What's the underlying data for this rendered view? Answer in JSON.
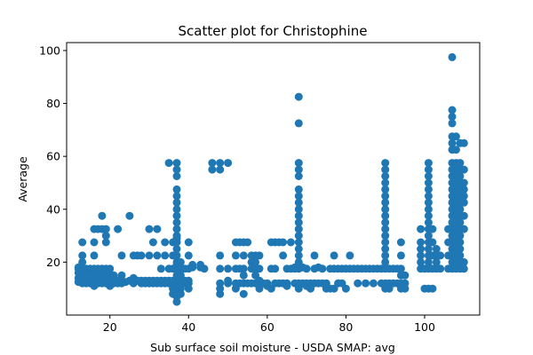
{
  "chart_data": {
    "type": "scatter",
    "title": "Scatter plot for Christophine",
    "xlabel": "Sub surface soil moisture - USDA SMAP: avg",
    "ylabel": "Average",
    "xlim": [
      9,
      114
    ],
    "ylim": [
      0,
      103
    ],
    "xticks": [
      20,
      40,
      60,
      80,
      100
    ],
    "yticks": [
      20,
      40,
      60,
      80,
      100
    ],
    "grid": false,
    "marker_color": "#1f77b4",
    "points": [
      [
        12,
        12.5
      ],
      [
        12,
        14
      ],
      [
        12,
        16
      ],
      [
        12,
        17.5
      ],
      [
        12,
        18
      ],
      [
        13,
        12
      ],
      [
        13,
        15
      ],
      [
        13,
        17.5
      ],
      [
        13,
        20
      ],
      [
        13,
        22.5
      ],
      [
        13,
        27.5
      ],
      [
        14,
        12
      ],
      [
        14,
        13
      ],
      [
        14,
        15
      ],
      [
        14,
        17.5
      ],
      [
        15,
        12
      ],
      [
        15,
        13
      ],
      [
        15,
        16
      ],
      [
        15,
        17.5
      ],
      [
        16,
        11
      ],
      [
        16,
        13
      ],
      [
        16,
        15
      ],
      [
        16,
        17.5
      ],
      [
        16,
        22.5
      ],
      [
        16,
        27.5
      ],
      [
        16,
        32.5
      ],
      [
        17,
        12
      ],
      [
        17,
        13
      ],
      [
        17,
        15
      ],
      [
        17,
        17.5
      ],
      [
        17,
        32.5
      ],
      [
        18,
        12
      ],
      [
        18,
        15
      ],
      [
        18,
        17.5
      ],
      [
        18,
        32.5
      ],
      [
        18,
        37.5
      ],
      [
        19,
        12
      ],
      [
        19,
        13
      ],
      [
        19,
        15
      ],
      [
        19,
        17.5
      ],
      [
        19,
        27.5
      ],
      [
        19,
        30
      ],
      [
        19,
        32.5
      ],
      [
        20,
        11
      ],
      [
        20,
        13
      ],
      [
        20,
        15
      ],
      [
        20,
        17.5
      ],
      [
        21,
        12
      ],
      [
        21,
        13
      ],
      [
        21,
        15
      ],
      [
        22,
        12
      ],
      [
        22,
        13
      ],
      [
        22,
        32.5
      ],
      [
        23,
        12
      ],
      [
        23,
        13
      ],
      [
        23,
        15
      ],
      [
        23,
        22.5
      ],
      [
        24,
        12.5
      ],
      [
        25,
        13
      ],
      [
        25,
        37.5
      ],
      [
        26,
        12
      ],
      [
        26,
        14
      ],
      [
        26,
        22.5
      ],
      [
        27,
        13
      ],
      [
        27,
        22.5
      ],
      [
        28,
        12
      ],
      [
        28,
        13
      ],
      [
        28,
        22.5
      ],
      [
        29,
        12
      ],
      [
        29,
        13
      ],
      [
        30,
        12
      ],
      [
        30,
        13
      ],
      [
        30,
        22.5
      ],
      [
        30,
        32.5
      ],
      [
        31,
        12
      ],
      [
        31,
        13
      ],
      [
        31,
        27.5
      ],
      [
        32,
        12
      ],
      [
        32,
        13
      ],
      [
        32,
        22.5
      ],
      [
        32,
        32.5
      ],
      [
        33,
        12
      ],
      [
        33,
        13
      ],
      [
        33,
        17.5
      ],
      [
        34,
        12
      ],
      [
        34,
        13
      ],
      [
        34,
        22.5
      ],
      [
        34,
        27.5
      ],
      [
        35,
        12
      ],
      [
        35,
        13
      ],
      [
        35,
        17.5
      ],
      [
        35,
        57.5
      ],
      [
        36,
        8
      ],
      [
        36,
        10
      ],
      [
        36,
        12
      ],
      [
        36,
        13
      ],
      [
        36,
        17.5
      ],
      [
        36,
        22.5
      ],
      [
        36,
        27.5
      ],
      [
        37,
        5
      ],
      [
        37,
        7
      ],
      [
        37,
        8
      ],
      [
        37,
        10
      ],
      [
        37,
        12
      ],
      [
        37,
        13
      ],
      [
        37,
        15
      ],
      [
        37,
        17.5
      ],
      [
        37,
        19
      ],
      [
        37,
        20
      ],
      [
        37,
        22.5
      ],
      [
        37,
        25
      ],
      [
        37,
        27.5
      ],
      [
        37,
        29
      ],
      [
        37,
        30
      ],
      [
        37,
        32.5
      ],
      [
        37,
        35
      ],
      [
        37,
        37.5
      ],
      [
        37,
        40
      ],
      [
        37,
        42.5
      ],
      [
        37,
        45
      ],
      [
        37,
        47.5
      ],
      [
        37,
        52.5
      ],
      [
        37,
        55
      ],
      [
        37,
        57.5
      ],
      [
        38,
        8
      ],
      [
        38,
        10
      ],
      [
        38,
        11
      ],
      [
        38,
        13
      ],
      [
        38,
        15
      ],
      [
        38,
        17.5
      ],
      [
        38,
        20
      ],
      [
        39,
        12
      ],
      [
        39,
        13
      ],
      [
        39,
        17.5
      ],
      [
        40,
        10
      ],
      [
        40,
        12
      ],
      [
        40,
        13
      ],
      [
        40,
        17.5
      ],
      [
        40,
        22.5
      ],
      [
        40,
        27.5
      ],
      [
        41,
        18
      ],
      [
        41,
        19
      ],
      [
        43,
        18
      ],
      [
        43,
        19
      ],
      [
        44,
        17.5
      ],
      [
        46,
        55
      ],
      [
        46,
        57.5
      ],
      [
        48,
        8
      ],
      [
        48,
        10
      ],
      [
        48,
        12
      ],
      [
        48,
        17.5
      ],
      [
        48,
        22.5
      ],
      [
        48,
        55
      ],
      [
        48,
        57.5
      ],
      [
        50,
        12
      ],
      [
        50,
        13
      ],
      [
        50,
        17.5
      ],
      [
        50,
        57.5
      ],
      [
        52,
        10
      ],
      [
        52,
        12
      ],
      [
        52,
        17.5
      ],
      [
        52,
        22.5
      ],
      [
        52,
        27.5
      ],
      [
        53,
        12
      ],
      [
        53,
        17.5
      ],
      [
        53,
        27.5
      ],
      [
        54,
        8
      ],
      [
        54,
        12
      ],
      [
        54,
        15
      ],
      [
        54,
        17.5
      ],
      [
        54,
        22.5
      ],
      [
        54,
        27.5
      ],
      [
        55,
        12
      ],
      [
        55,
        27.5
      ],
      [
        56,
        12
      ],
      [
        56,
        17.5
      ],
      [
        56,
        20
      ],
      [
        56,
        22.5
      ],
      [
        57,
        12
      ],
      [
        57,
        15
      ],
      [
        57,
        17.5
      ],
      [
        57,
        20
      ],
      [
        57,
        22.5
      ],
      [
        58,
        10
      ],
      [
        58,
        12
      ],
      [
        58,
        13
      ],
      [
        58,
        17.5
      ],
      [
        58,
        22.5
      ],
      [
        59,
        12
      ],
      [
        60,
        11
      ],
      [
        60,
        12
      ],
      [
        61,
        10
      ],
      [
        61,
        17.5
      ],
      [
        61,
        27.5
      ],
      [
        62,
        12
      ],
      [
        62,
        17.5
      ],
      [
        62,
        27.5
      ],
      [
        63,
        12
      ],
      [
        63,
        27.5
      ],
      [
        64,
        12
      ],
      [
        64,
        22.5
      ],
      [
        64,
        27.5
      ],
      [
        65,
        11
      ],
      [
        65,
        12
      ],
      [
        65,
        17.5
      ],
      [
        66,
        17.5
      ],
      [
        66,
        27.5
      ],
      [
        67,
        12
      ],
      [
        67,
        17.5
      ],
      [
        67,
        18
      ],
      [
        68,
        10
      ],
      [
        68,
        12
      ],
      [
        68,
        17.5
      ],
      [
        68,
        18
      ],
      [
        68,
        20
      ],
      [
        68,
        22.5
      ],
      [
        68,
        25
      ],
      [
        68,
        27.5
      ],
      [
        68,
        30
      ],
      [
        68,
        32.5
      ],
      [
        68,
        35
      ],
      [
        68,
        37.5
      ],
      [
        68,
        40
      ],
      [
        68,
        42.5
      ],
      [
        68,
        45
      ],
      [
        68,
        47.5
      ],
      [
        68,
        52.5
      ],
      [
        68,
        55
      ],
      [
        68,
        57.5
      ],
      [
        68,
        72.5
      ],
      [
        68,
        82.5
      ],
      [
        69,
        12
      ],
      [
        69,
        18
      ],
      [
        70,
        11
      ],
      [
        70,
        12
      ],
      [
        70,
        17.5
      ],
      [
        71,
        10
      ],
      [
        71,
        12
      ],
      [
        72,
        12
      ],
      [
        72,
        17.5
      ],
      [
        72,
        22.5
      ],
      [
        73,
        12
      ],
      [
        73,
        18
      ],
      [
        74,
        12
      ],
      [
        74,
        17.5
      ],
      [
        75,
        10
      ],
      [
        75,
        12
      ],
      [
        76,
        10
      ],
      [
        76,
        17.5
      ],
      [
        77,
        10
      ],
      [
        77,
        17.5
      ],
      [
        77,
        22.5
      ],
      [
        78,
        12
      ],
      [
        78,
        17.5
      ],
      [
        79,
        12
      ],
      [
        79,
        17.5
      ],
      [
        80,
        10
      ],
      [
        80,
        17.5
      ],
      [
        81,
        17.5
      ],
      [
        81,
        22.5
      ],
      [
        82,
        17.5
      ],
      [
        83,
        12
      ],
      [
        83,
        17.5
      ],
      [
        84,
        17.5
      ],
      [
        85,
        12
      ],
      [
        85,
        17.5
      ],
      [
        86,
        17.5
      ],
      [
        87,
        12
      ],
      [
        87,
        17.5
      ],
      [
        88,
        17.5
      ],
      [
        89,
        12
      ],
      [
        89,
        17.5
      ],
      [
        90,
        10
      ],
      [
        90,
        12
      ],
      [
        90,
        17.5
      ],
      [
        90,
        20
      ],
      [
        90,
        22.5
      ],
      [
        90,
        25
      ],
      [
        90,
        27.5
      ],
      [
        90,
        30
      ],
      [
        90,
        32.5
      ],
      [
        90,
        35
      ],
      [
        90,
        37.5
      ],
      [
        90,
        40
      ],
      [
        90,
        42.5
      ],
      [
        90,
        45
      ],
      [
        90,
        47.5
      ],
      [
        90,
        50
      ],
      [
        90,
        52.5
      ],
      [
        90,
        55
      ],
      [
        90,
        57.5
      ],
      [
        91,
        10
      ],
      [
        91,
        12
      ],
      [
        91,
        17.5
      ],
      [
        92,
        12
      ],
      [
        92,
        17.5
      ],
      [
        93,
        12
      ],
      [
        93,
        17.5
      ],
      [
        94,
        10
      ],
      [
        94,
        12
      ],
      [
        94,
        15
      ],
      [
        94,
        17.5
      ],
      [
        94,
        22.5
      ],
      [
        94,
        27.5
      ],
      [
        95,
        10
      ],
      [
        95,
        12
      ],
      [
        95,
        15
      ],
      [
        99,
        17.5
      ],
      [
        99,
        20
      ],
      [
        99,
        22.5
      ],
      [
        99,
        25
      ],
      [
        99,
        27.5
      ],
      [
        99,
        32.5
      ],
      [
        100,
        10
      ],
      [
        100,
        17.5
      ],
      [
        101,
        10
      ],
      [
        101,
        17.5
      ],
      [
        101,
        20
      ],
      [
        101,
        22.5
      ],
      [
        101,
        25
      ],
      [
        101,
        27.5
      ],
      [
        101,
        30
      ],
      [
        101,
        32.5
      ],
      [
        101,
        35
      ],
      [
        101,
        37.5
      ],
      [
        101,
        40
      ],
      [
        101,
        42.5
      ],
      [
        101,
        45
      ],
      [
        101,
        47.5
      ],
      [
        101,
        50
      ],
      [
        101,
        52.5
      ],
      [
        101,
        55
      ],
      [
        101,
        57.5
      ],
      [
        102,
        10
      ],
      [
        102,
        17.5
      ],
      [
        102,
        22.5
      ],
      [
        102,
        27.5
      ],
      [
        102,
        32.5
      ],
      [
        103,
        17.5
      ],
      [
        103,
        20
      ],
      [
        103,
        22.5
      ],
      [
        103,
        25
      ],
      [
        104,
        17.5
      ],
      [
        104,
        22.5
      ],
      [
        106,
        17.5
      ],
      [
        106,
        22.5
      ],
      [
        106,
        27.5
      ],
      [
        106,
        32.5
      ],
      [
        107,
        17.5
      ],
      [
        107,
        20
      ],
      [
        107,
        22.5
      ],
      [
        107,
        25
      ],
      [
        107,
        27.5
      ],
      [
        107,
        30
      ],
      [
        107,
        32.5
      ],
      [
        107,
        35
      ],
      [
        107,
        37.5
      ],
      [
        107,
        40
      ],
      [
        107,
        42.5
      ],
      [
        107,
        45
      ],
      [
        107,
        47.5
      ],
      [
        107,
        50
      ],
      [
        107,
        52.5
      ],
      [
        107,
        55
      ],
      [
        107,
        57.5
      ],
      [
        107,
        62.5
      ],
      [
        107,
        65
      ],
      [
        107,
        67.5
      ],
      [
        107,
        72.5
      ],
      [
        107,
        75
      ],
      [
        107,
        77.5
      ],
      [
        107,
        97.5
      ],
      [
        108,
        17.5
      ],
      [
        108,
        20
      ],
      [
        108,
        22.5
      ],
      [
        108,
        25
      ],
      [
        108,
        27.5
      ],
      [
        108,
        30
      ],
      [
        108,
        32.5
      ],
      [
        108,
        35
      ],
      [
        108,
        37.5
      ],
      [
        108,
        40
      ],
      [
        108,
        42.5
      ],
      [
        108,
        45
      ],
      [
        108,
        47.5
      ],
      [
        108,
        50
      ],
      [
        108,
        52.5
      ],
      [
        108,
        55
      ],
      [
        108,
        57.5
      ],
      [
        108,
        62.5
      ],
      [
        108,
        67.5
      ],
      [
        109,
        17.5
      ],
      [
        109,
        20
      ],
      [
        109,
        22.5
      ],
      [
        109,
        25
      ],
      [
        109,
        27.5
      ],
      [
        109,
        30
      ],
      [
        109,
        32.5
      ],
      [
        109,
        35
      ],
      [
        109,
        37.5
      ],
      [
        109,
        40
      ],
      [
        109,
        42.5
      ],
      [
        109,
        45
      ],
      [
        109,
        47.5
      ],
      [
        109,
        50
      ],
      [
        109,
        52.5
      ],
      [
        109,
        55
      ],
      [
        109,
        57.5
      ],
      [
        109,
        65
      ],
      [
        110,
        17.5
      ],
      [
        110,
        20
      ],
      [
        110,
        32.5
      ],
      [
        110,
        37.5
      ],
      [
        110,
        42.5
      ],
      [
        110,
        45
      ],
      [
        110,
        47.5
      ],
      [
        110,
        50
      ],
      [
        110,
        55
      ],
      [
        110,
        65
      ]
    ]
  }
}
